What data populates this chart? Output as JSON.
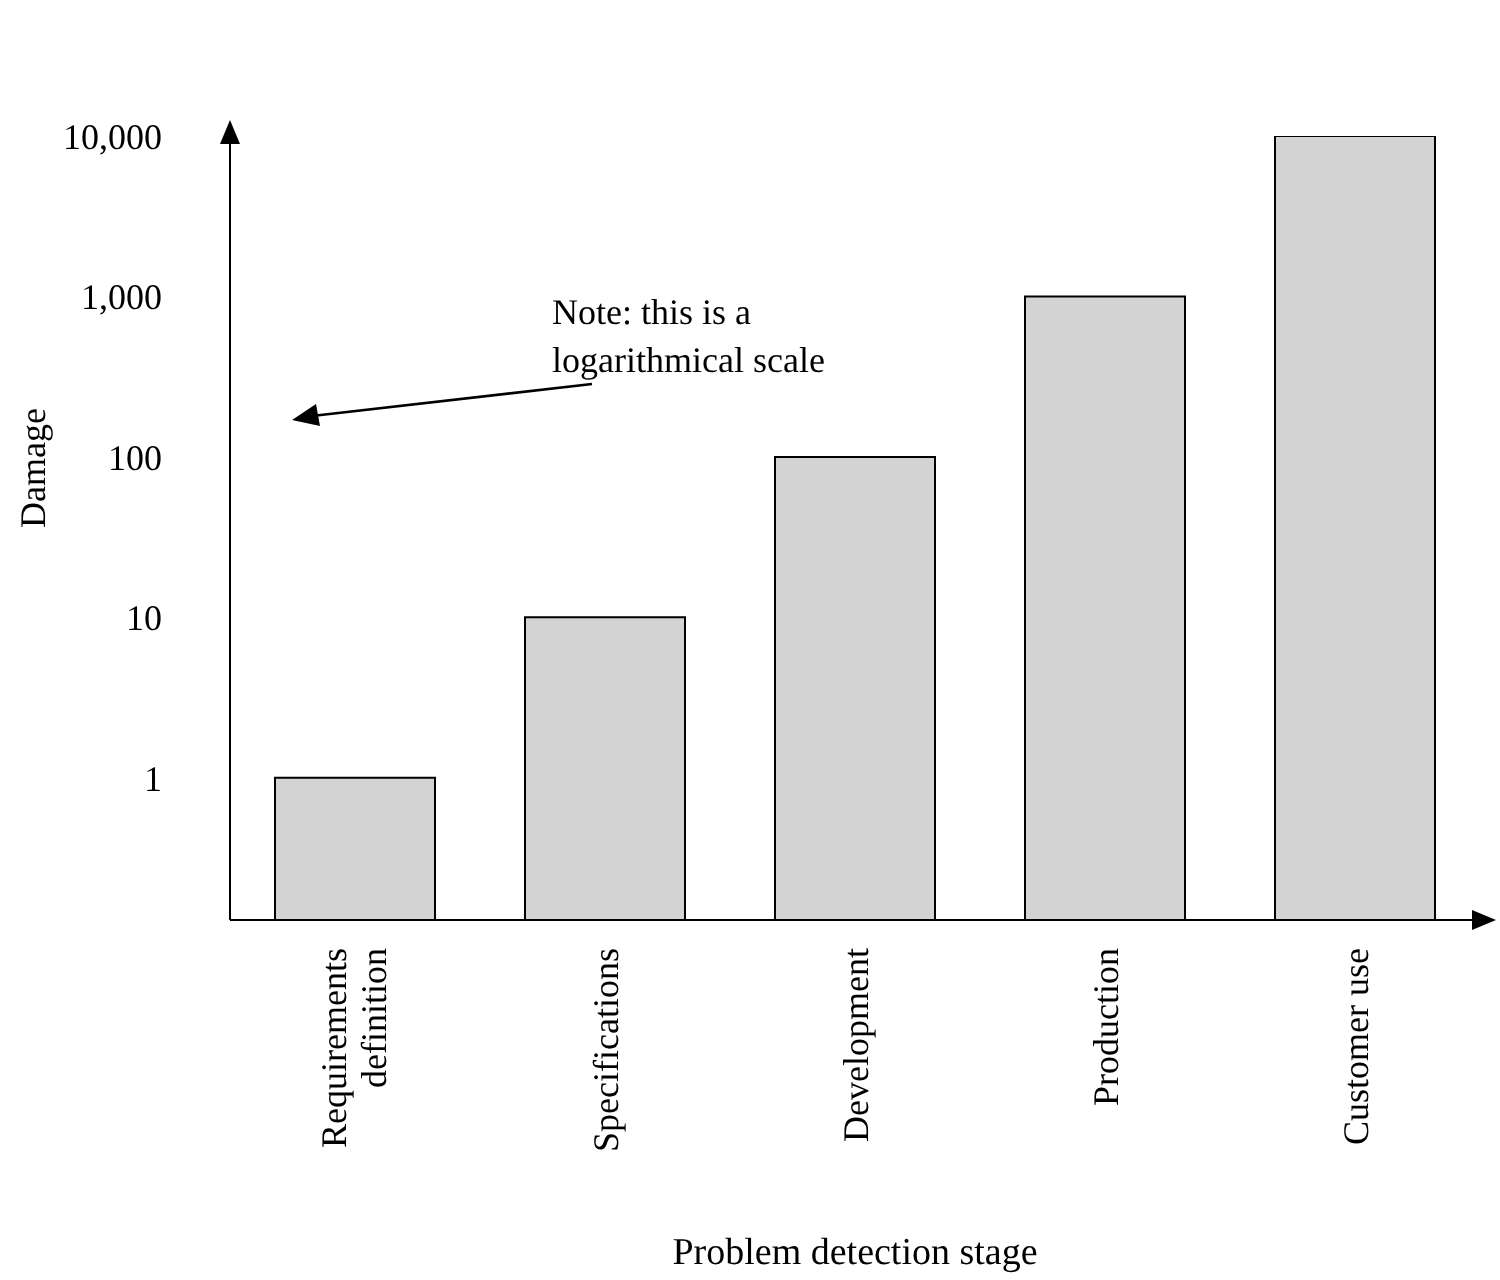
{
  "chart_data": {
    "type": "bar",
    "xlabel": "Problem detection stage",
    "ylabel": "Damage",
    "categories": [
      "Requirements definition",
      "Specifications",
      "Development",
      "Production",
      "Customer use"
    ],
    "values": [
      1,
      10,
      100,
      1000,
      10000
    ],
    "color": "#d3d3d3",
    "log": "y",
    "ylim": [
      0.13,
      10000
    ],
    "yticks": [
      1,
      10,
      100,
      {
        "value": 1000,
        "label": "1,000"
      },
      {
        "value": 10000,
        "label": "10,000"
      }
    ],
    "annotations": [
      "Note: this is a logarithmical scale"
    ]
  }
}
